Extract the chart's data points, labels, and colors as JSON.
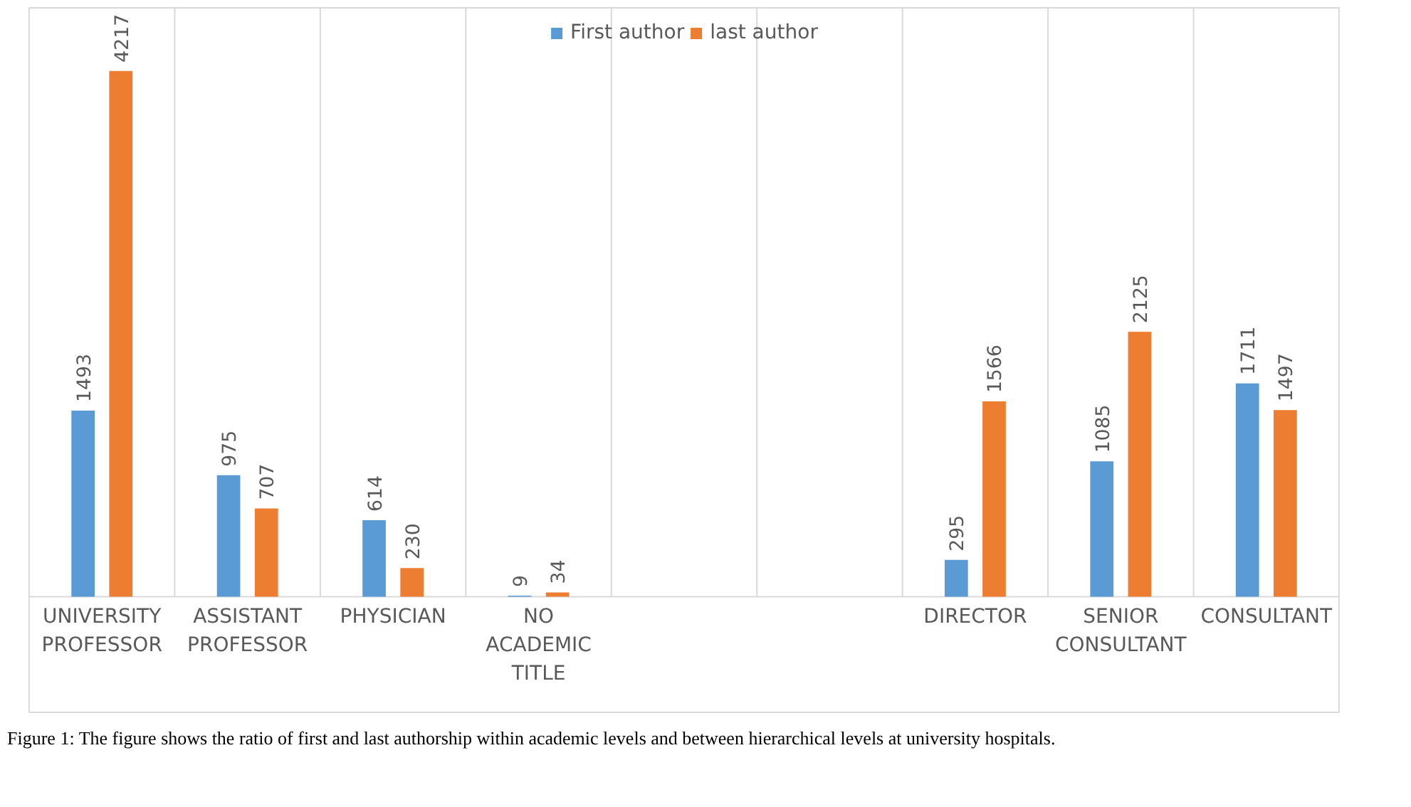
{
  "chart_data": {
    "type": "bar",
    "categories": [
      "UNIVERSITY\nPROFESSOR",
      "ASSISTANT\nPROFESSOR",
      "PHYSICIAN",
      "NO\nACADEMIC\nTITLE",
      null,
      null,
      "DIRECTOR",
      "SENIOR\nCONSULTANT",
      "CONSULTANT"
    ],
    "series": [
      {
        "name": "First author",
        "color": "#5b9bd5",
        "values": [
          1493,
          975,
          614,
          9,
          null,
          null,
          295,
          1085,
          1711
        ]
      },
      {
        "name": "last author",
        "color": "#ed7d31",
        "values": [
          4217,
          707,
          230,
          34,
          null,
          null,
          1566,
          2125,
          1497
        ]
      }
    ],
    "data_labels": true,
    "grid": "x",
    "legend": "top",
    "annotations": [
      "Figure 1: The figure shows the ratio of first and last authorship within academic levels and between hierarchical levels at university hospitals."
    ]
  }
}
